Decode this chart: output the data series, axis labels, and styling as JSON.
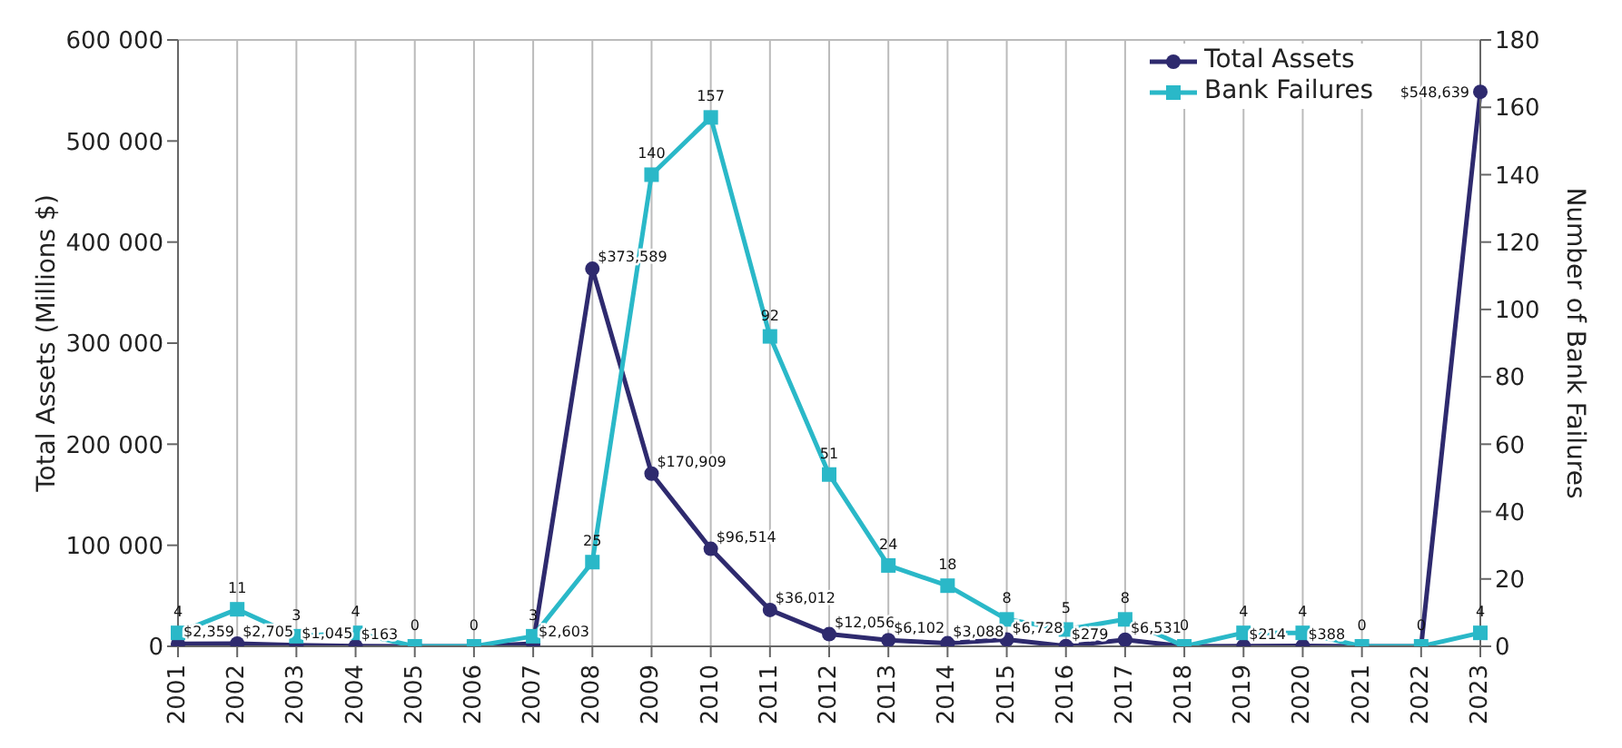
{
  "chart_data": {
    "type": "line",
    "categories": [
      "2001",
      "2002",
      "2003",
      "2004",
      "2005",
      "2006",
      "2007",
      "2008",
      "2009",
      "2010",
      "2011",
      "2012",
      "2013",
      "2014",
      "2015",
      "2016",
      "2017",
      "2018",
      "2019",
      "2020",
      "2021",
      "2022",
      "2023"
    ],
    "series": [
      {
        "name": "Total Assets",
        "color": "#2e2a6e",
        "marker": "circle",
        "values": [
          2359,
          2705,
          1045,
          163,
          0,
          0,
          2603,
          373589,
          170909,
          96514,
          36012,
          12056,
          6102,
          3088,
          6728,
          279,
          6531,
          0,
          214,
          388,
          0,
          0,
          548639
        ],
        "value_labels": [
          "$2,359",
          "$2,705",
          "$1,045",
          "$163",
          null,
          null,
          "$2,603",
          "$373,589",
          "$170,909",
          "$96,514",
          "$36,012",
          "$12,056",
          "$6,102",
          "$3,088",
          "$6,728",
          "$279",
          "$6,531",
          null,
          "$214",
          "$388",
          null,
          null,
          "$548,639"
        ]
      },
      {
        "name": "Bank Failures",
        "color": "#2ab8c8",
        "marker": "square",
        "axis": "y2",
        "values": [
          4,
          11,
          3,
          4,
          0,
          0,
          3,
          25,
          140,
          157,
          92,
          51,
          24,
          18,
          8,
          5,
          8,
          0,
          4,
          4,
          0,
          0,
          4
        ],
        "value_labels": [
          "4",
          "11",
          "3",
          "4",
          "0",
          "0",
          "3",
          "25",
          "140",
          "157",
          "92",
          "51",
          "24",
          "18",
          "8",
          "5",
          "8",
          "0",
          "4",
          "4",
          "0",
          "0",
          "4"
        ]
      }
    ],
    "ylabel": "Total Assets (Millions $)",
    "y2label": "Number of Bank Failures",
    "ylim": [
      0,
      600000
    ],
    "yticks": [
      {
        "value": 0,
        "label": "0"
      },
      {
        "value": 100000,
        "label": "100 000"
      },
      {
        "value": 200000,
        "label": "200 000"
      },
      {
        "value": 300000,
        "label": "300 000"
      },
      {
        "value": 400000,
        "label": "400 000"
      },
      {
        "value": 500000,
        "label": "500 000"
      },
      {
        "value": 600000,
        "label": "600 000"
      }
    ],
    "y2lim": [
      0,
      180
    ],
    "y2ticks": [
      0,
      20,
      40,
      60,
      80,
      100,
      120,
      140,
      160,
      180
    ],
    "grid": true,
    "legend": "top right"
  }
}
